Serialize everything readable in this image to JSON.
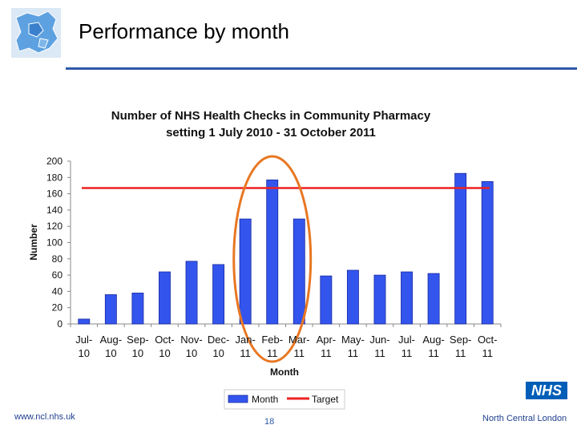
{
  "slide": {
    "title": "Performance by month",
    "footer_url": "www.ncl.nhs.uk",
    "page_number": "18",
    "logo_text": "NHS",
    "org_name": "North Central London"
  },
  "chart_data": {
    "type": "bar",
    "title_line1": "Number of NHS Health Checks in Community Pharmacy",
    "title_line2": "setting 1 July 2010 - 31 October 2011",
    "xlabel": "Month",
    "ylabel": "Number",
    "ylim": [
      0,
      200
    ],
    "yticks": [
      0,
      20,
      40,
      60,
      80,
      100,
      120,
      140,
      160,
      180,
      200
    ],
    "categories": [
      [
        "Jul-",
        "10"
      ],
      [
        "Aug-",
        "10"
      ],
      [
        "Sep-",
        "10"
      ],
      [
        "Oct-",
        "10"
      ],
      [
        "Nov-",
        "10"
      ],
      [
        "Dec-",
        "10"
      ],
      [
        "Jan-",
        "11"
      ],
      [
        "Feb-",
        "11"
      ],
      [
        "Mar-",
        "11"
      ],
      [
        "Apr-",
        "11"
      ],
      [
        "May-",
        "11"
      ],
      [
        "Jun-",
        "11"
      ],
      [
        "Jul-",
        "11"
      ],
      [
        "Aug-",
        "11"
      ],
      [
        "Sep-",
        "11"
      ],
      [
        "Oct-",
        "11"
      ]
    ],
    "series": [
      {
        "name": "Month",
        "type": "bar",
        "color": "#3355ee",
        "values": [
          6,
          36,
          38,
          64,
          77,
          73,
          129,
          177,
          129,
          59,
          66,
          60,
          64,
          62,
          185,
          175
        ]
      },
      {
        "name": "Target",
        "type": "line",
        "color": "#ee2222",
        "values": [
          167,
          167,
          167,
          167,
          167,
          167,
          167,
          167,
          167,
          167,
          167,
          167,
          167,
          167,
          167,
          167
        ]
      }
    ],
    "highlight": {
      "shape": "ellipse",
      "color": "#e87722",
      "categories": [
        "Jan-11",
        "Feb-11",
        "Mar-11"
      ]
    },
    "legend": "bottom",
    "grid": false
  }
}
